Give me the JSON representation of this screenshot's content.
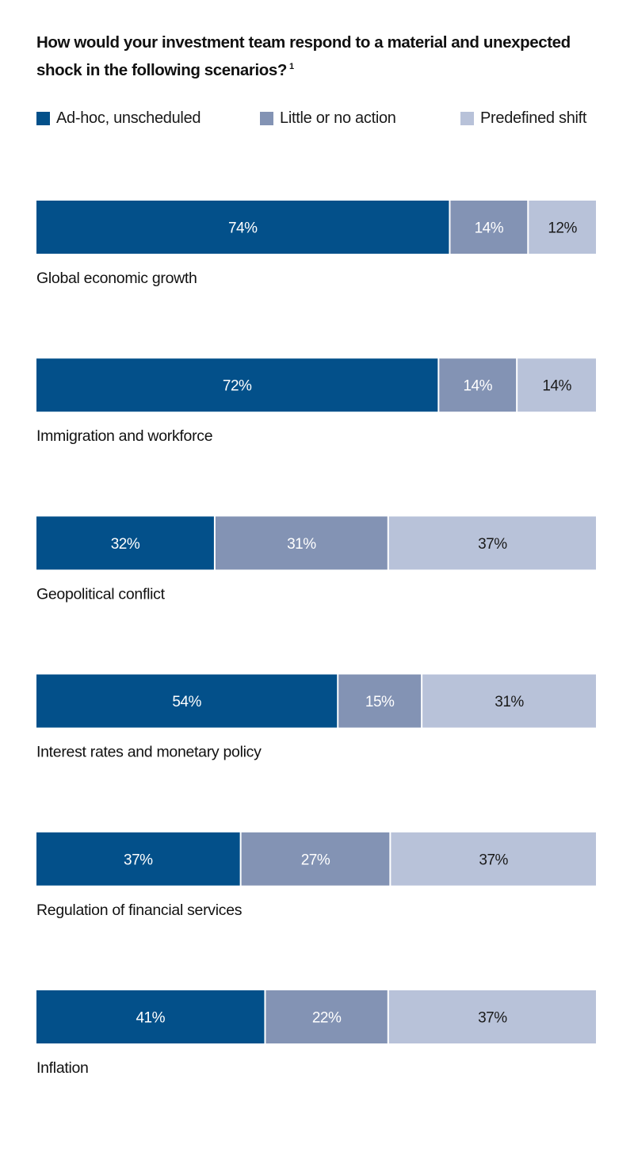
{
  "chart_data": {
    "type": "bar",
    "orientation": "horizontal",
    "stacked": true,
    "percent_stacked": true,
    "title": "How would your investment team respond to a material and unexpected shock in the following scenarios?",
    "title_footnote": "1",
    "xlabel": "",
    "ylabel": "",
    "grid": false,
    "legend_position": "top",
    "value_suffix": "%",
    "categories": [
      "Global economic growth",
      "Immigration and workforce",
      "Geopolitical conflict",
      "Interest rates and monetary policy",
      "Regulation of financial services",
      "Inflation"
    ],
    "series": [
      {
        "name": "Ad-hoc, unscheduled",
        "color": "#03508A",
        "label_color": "#ffffff",
        "values": [
          74,
          72,
          32,
          54,
          37,
          41
        ]
      },
      {
        "name": "Little or no action",
        "color": "#8393B4",
        "label_color": "#ffffff",
        "values": [
          14,
          14,
          31,
          15,
          27,
          22
        ]
      },
      {
        "name": "Predefined shift",
        "color": "#B8C2D9",
        "label_color": "#1a1a1a",
        "values": [
          12,
          14,
          37,
          31,
          37,
          37
        ]
      }
    ]
  }
}
